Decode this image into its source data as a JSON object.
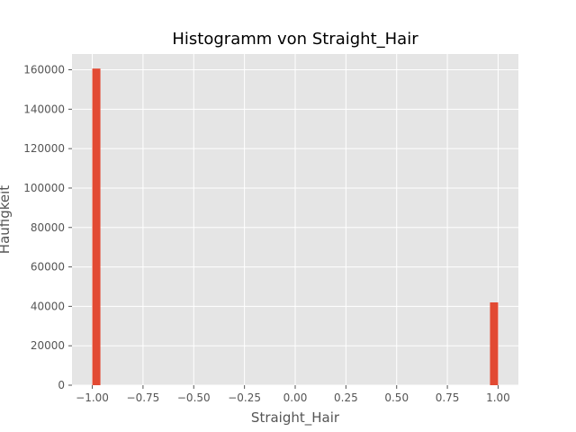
{
  "chart_data": {
    "type": "bar",
    "title": "Histogramm von Straight_Hair",
    "xlabel": "Straight_Hair",
    "ylabel": "Häufigkeit",
    "xlim": [
      -1.1,
      1.1
    ],
    "ylim": [
      0,
      168000
    ],
    "xticks": [
      -1.0,
      -0.75,
      -0.5,
      -0.25,
      0.0,
      0.25,
      0.5,
      0.75,
      1.0
    ],
    "xtick_labels": [
      "−1.00",
      "−0.75",
      "−0.50",
      "−0.25",
      "0.00",
      "0.25",
      "0.50",
      "0.75",
      "1.00"
    ],
    "yticks": [
      0,
      20000,
      40000,
      60000,
      80000,
      100000,
      120000,
      140000,
      160000
    ],
    "ytick_labels": [
      "0",
      "20000",
      "40000",
      "60000",
      "80000",
      "100000",
      "120000",
      "140000",
      "160000"
    ],
    "bins": [
      {
        "x0": -1.0,
        "x1": -0.96,
        "value": 160600
      },
      {
        "x0": 0.96,
        "x1": 1.0,
        "value": 42000
      }
    ],
    "grid": true,
    "colors": {
      "bar": "#E24A33",
      "plot_background": "#E5E5E5",
      "grid": "#FFFFFF",
      "text": "#555555",
      "title": "#000000"
    }
  }
}
